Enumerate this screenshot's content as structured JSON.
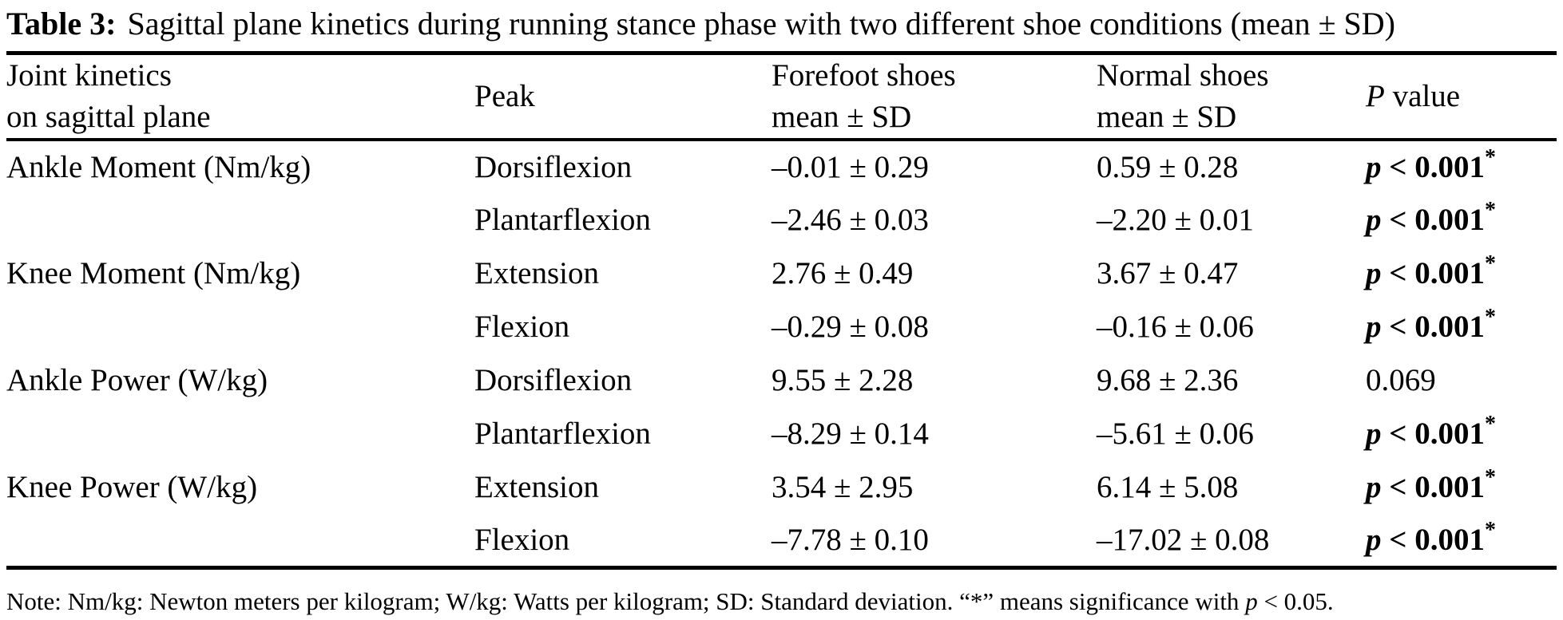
{
  "caption": {
    "label": "Table 3:",
    "text": "Sagittal plane kinetics during running stance phase with two different shoe conditions (mean ± SD)"
  },
  "table": {
    "header": {
      "joint_line1": "Joint kinetics",
      "joint_line2": "on sagittal plane",
      "peak": "Peak",
      "forefoot_line1": "Forefoot shoes",
      "forefoot_line2": "mean ± SD",
      "normal_line1": "Normal shoes",
      "normal_line2": "mean ± SD",
      "p_italic": "P",
      "p_rest": " value"
    },
    "rows": [
      {
        "joint": "Ankle Moment (Nm/kg)",
        "peak": "Dorsiflexion",
        "forefoot": "–0.01 ± 0.29",
        "normal": "0.59 ± 0.28",
        "p_italic": "p",
        "p_bold": " < 0.001",
        "p_sup": "*",
        "p_plain": ""
      },
      {
        "joint": "",
        "peak": "Plantarflexion",
        "forefoot": "–2.46 ± 0.03",
        "normal": "–2.20 ± 0.01",
        "p_italic": "p",
        "p_bold": " < 0.001",
        "p_sup": "*",
        "p_plain": ""
      },
      {
        "joint": "Knee Moment (Nm/kg)",
        "peak": "Extension",
        "forefoot": "2.76 ± 0.49",
        "normal": "3.67 ± 0.47",
        "p_italic": "p",
        "p_bold": " < 0.001",
        "p_sup": "*",
        "p_plain": ""
      },
      {
        "joint": "",
        "peak": "Flexion",
        "forefoot": "–0.29 ± 0.08",
        "normal": "–0.16 ± 0.06",
        "p_italic": "p",
        "p_bold": " < 0.001",
        "p_sup": "*",
        "p_plain": ""
      },
      {
        "joint": "Ankle Power (W/kg)",
        "peak": "Dorsiflexion",
        "forefoot": "9.55 ± 2.28",
        "normal": "9.68 ± 2.36",
        "p_italic": "",
        "p_bold": "",
        "p_sup": "",
        "p_plain": "0.069"
      },
      {
        "joint": "",
        "peak": "Plantarflexion",
        "forefoot": "–8.29 ± 0.14",
        "normal": "–5.61 ± 0.06",
        "p_italic": "p",
        "p_bold": " < 0.001",
        "p_sup": "*",
        "p_plain": ""
      },
      {
        "joint": "Knee Power (W/kg)",
        "peak": "Extension",
        "forefoot": "3.54 ± 2.95",
        "normal": "6.14 ± 5.08",
        "p_italic": "p",
        "p_bold": " < 0.001",
        "p_sup": "*",
        "p_plain": ""
      },
      {
        "joint": "",
        "peak": "Flexion",
        "forefoot": "–7.78 ± 0.10",
        "normal": "–17.02 ± 0.08",
        "p_italic": "p",
        "p_bold": " < 0.001",
        "p_sup": "*",
        "p_plain": ""
      }
    ]
  },
  "footnote": {
    "pre": "Note: Nm/kg: Newton meters per kilogram; W/kg: Watts per kilogram; SD: Standard deviation. “*” means significance with ",
    "p_italic": "p",
    "post": " < 0.05."
  },
  "colors": {
    "text": "#000000",
    "background": "#ffffff",
    "rule": "#000000"
  }
}
